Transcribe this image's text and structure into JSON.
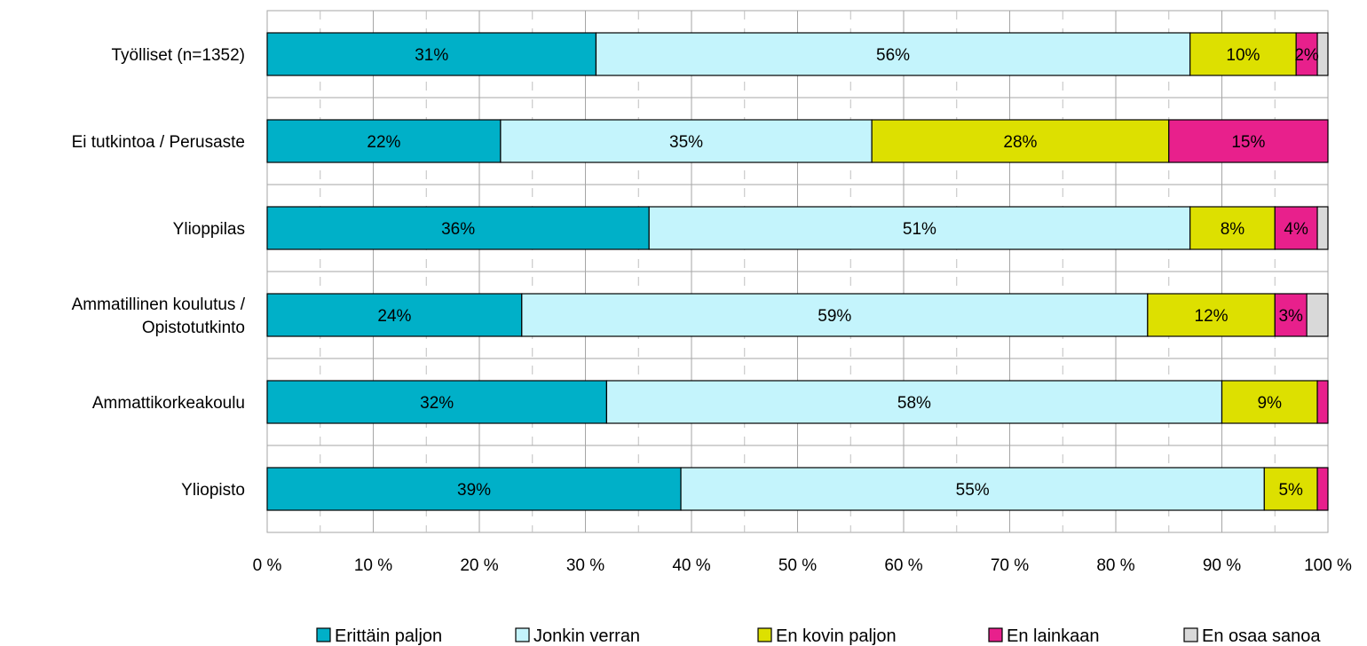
{
  "chart_data": {
    "type": "bar",
    "orientation": "horizontal",
    "stacked": "percent",
    "categories": [
      "Työlliset (n=1352)",
      "Ei tutkintoa / Perusaste",
      "Ylioppilas",
      "Ammatillinen koulutus / Opistotutkinto",
      "Ammattikorkeakoulu",
      "Yliopisto"
    ],
    "category_lines": [
      [
        "Työlliset (n=1352)"
      ],
      [
        "Ei tutkintoa / Perusaste"
      ],
      [
        "Ylioppilas"
      ],
      [
        "Ammatillinen koulutus /",
        "Opistotutkinto"
      ],
      [
        "Ammattikorkeakoulu"
      ],
      [
        "Yliopisto"
      ]
    ],
    "series": [
      {
        "name": "Erittäin paljon",
        "color": "#00b0c8",
        "values": [
          31,
          22,
          36,
          24,
          32,
          39
        ],
        "labels": [
          "31%",
          "22%",
          "36%",
          "24%",
          "32%",
          "39%"
        ]
      },
      {
        "name": "Jonkin verran",
        "color": "#c4f4fc",
        "values": [
          56,
          35,
          51,
          59,
          58,
          55
        ],
        "labels": [
          "56%",
          "35%",
          "51%",
          "59%",
          "58%",
          "55%"
        ]
      },
      {
        "name": "En kovin paljon",
        "color": "#dde000",
        "values": [
          10,
          28,
          8,
          12,
          9,
          5
        ],
        "labels": [
          "10%",
          "28%",
          "8%",
          "12%",
          "9%",
          "5%"
        ]
      },
      {
        "name": "En lainkaan",
        "color": "#e8208c",
        "values": [
          2,
          15,
          4,
          3,
          1,
          1
        ],
        "labels": [
          "2%",
          "15%",
          "4%",
          "3%",
          "",
          ""
        ]
      },
      {
        "name": "En osaa sanoa",
        "color": "#d9d9d9",
        "values": [
          1,
          0,
          1,
          2,
          0,
          0
        ],
        "labels": [
          "",
          "",
          "",
          "",
          "",
          ""
        ]
      }
    ],
    "x_ticks": [
      "0 %",
      "10 %",
      "20 %",
      "30 %",
      "40 %",
      "50 %",
      "60 %",
      "70 %",
      "80 %",
      "90 %",
      "100 %"
    ],
    "xlim": [
      0,
      100
    ],
    "grid": true,
    "legend_position": "bottom",
    "title": "",
    "xlabel": "",
    "ylabel": ""
  }
}
